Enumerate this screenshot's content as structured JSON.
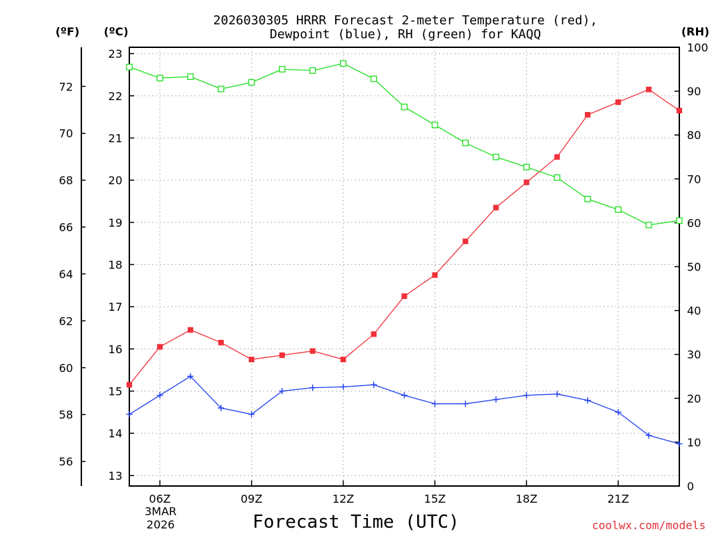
{
  "chart_data": {
    "type": "line",
    "title": [
      "2026030305 HRRR Forecast 2-meter Temperature (red),",
      "Dewpoint (blue), RH (green) for KAQQ"
    ],
    "xlabel": "Forecast Time (UTC)",
    "credit": "coolwx.com/models",
    "units": {
      "f": "(ºF)",
      "c": "(ºC)",
      "rh": "(RH)"
    },
    "x_hours": [
      5,
      6,
      7,
      8,
      9,
      10,
      11,
      12,
      13,
      14,
      15,
      16,
      17,
      18,
      19,
      20,
      21,
      22,
      23
    ],
    "x_range": [
      5,
      23
    ],
    "x_ticks": [
      {
        "hour": 6,
        "label": "06Z"
      },
      {
        "hour": 9,
        "label": "09Z"
      },
      {
        "hour": 12,
        "label": "12Z"
      },
      {
        "hour": 15,
        "label": "15Z"
      },
      {
        "hour": 18,
        "label": "18Z"
      },
      {
        "hour": 21,
        "label": "21Z"
      }
    ],
    "date_label": [
      "3MAR",
      "2026"
    ],
    "c_range": [
      12.75,
      23.15
    ],
    "c_ticks": [
      13,
      14,
      15,
      16,
      17,
      18,
      19,
      20,
      21,
      22,
      23
    ],
    "f_ticks": [
      56,
      58,
      60,
      62,
      64,
      66,
      68,
      70,
      72
    ],
    "rh_range": [
      0,
      100
    ],
    "rh_ticks": [
      0,
      10,
      20,
      30,
      40,
      50,
      60,
      70,
      80,
      90,
      100
    ],
    "series": [
      {
        "name": "Temperature",
        "units": "C",
        "color": "#f0303a",
        "marker": "filled-square",
        "values": [
          15.15,
          16.05,
          16.45,
          16.15,
          15.75,
          15.85,
          15.95,
          15.75,
          16.35,
          17.25,
          17.75,
          18.55,
          19.35,
          19.95,
          20.55,
          21.55,
          21.85,
          22.15,
          21.65
        ]
      },
      {
        "name": "Dewpoint",
        "units": "C",
        "color": "#2040f0",
        "marker": "plus",
        "values": [
          14.45,
          14.9,
          15.35,
          14.6,
          14.45,
          15.0,
          15.08,
          15.1,
          15.15,
          14.9,
          14.7,
          14.7,
          14.8,
          14.9,
          14.93,
          14.78,
          14.5,
          13.95,
          13.75
        ]
      },
      {
        "name": "RH",
        "units": "%",
        "color": "#20e020",
        "marker": "open-square",
        "values": [
          95.5,
          93.0,
          93.3,
          90.5,
          92.0,
          95.0,
          94.7,
          96.3,
          92.8,
          86.4,
          82.3,
          78.2,
          75.0,
          72.7,
          70.3,
          65.4,
          63.0,
          59.5,
          60.5
        ]
      }
    ]
  }
}
